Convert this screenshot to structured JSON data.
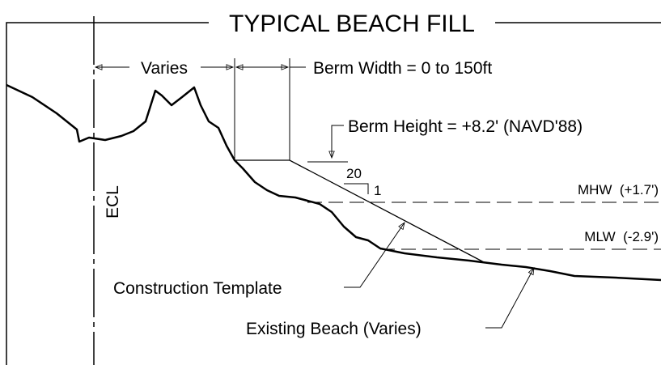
{
  "title": "TYPICAL BEACH FILL",
  "dimensions": {
    "varies": "Varies",
    "berm_width": "Berm Width = 0 to 150ft",
    "berm_height": "Berm Height = +8.2' (NAVD'88)"
  },
  "slope": {
    "run": "20",
    "rise": "1"
  },
  "water_levels": {
    "mhw": "MHW  (+1.7')",
    "mlw": "MLW  (-2.9')"
  },
  "ecl": "ECL",
  "callouts": {
    "template": "Construction Template",
    "existing": "Existing Beach (Varies)"
  }
}
